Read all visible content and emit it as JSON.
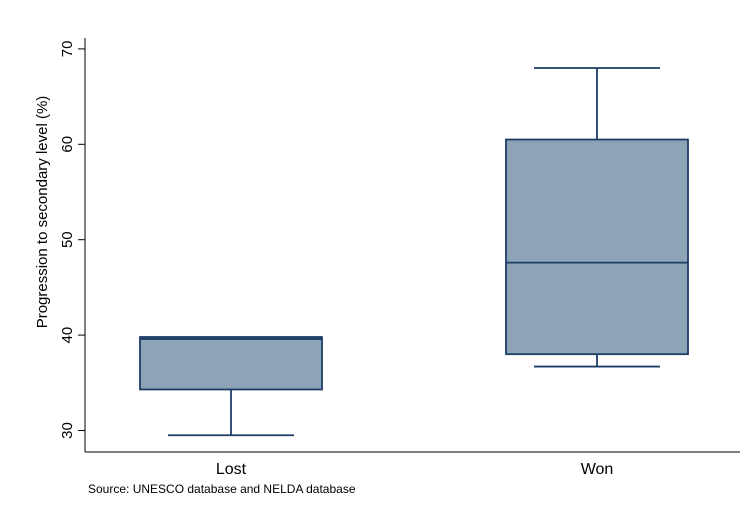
{
  "chart_data": {
    "type": "box",
    "ylabel": "Progression to secondary level (%)",
    "ylim": [
      28,
      72
    ],
    "yticks": [
      30,
      40,
      50,
      60,
      70
    ],
    "grid": false,
    "categories": [
      "Lost",
      "Won"
    ],
    "boxes": [
      {
        "category": "Lost",
        "min": 29.5,
        "q1": 34.3,
        "median": 39.6,
        "q3": 39.8,
        "max": 39.8
      },
      {
        "category": "Won",
        "min": 36.7,
        "q1": 38.0,
        "median": 47.6,
        "q3": 60.5,
        "max": 68.0
      }
    ],
    "box_fill": "#8da4b8",
    "line_color": "#1c3d66",
    "note": "Source: UNESCO database and NELDA database"
  }
}
